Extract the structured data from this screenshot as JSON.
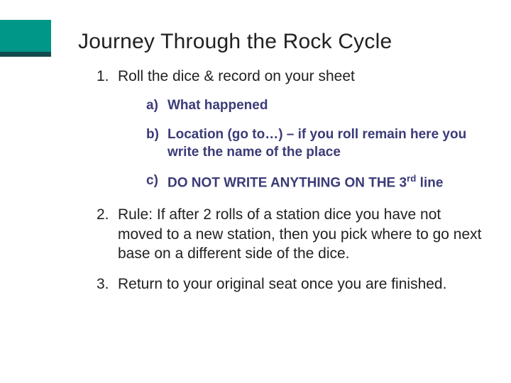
{
  "title": "Journey Through the Rock Cycle",
  "accent": {
    "primary": "#009688",
    "secondary": "#144b4e"
  },
  "colors": {
    "text": "#212121",
    "sub_text": "#3b3b78",
    "background": "#ffffff"
  },
  "typography": {
    "title_size": 30,
    "main_size": 21,
    "sub_size": 19
  },
  "items": [
    {
      "marker": "1.",
      "text": "Roll the dice & record on your sheet",
      "sub": [
        {
          "marker": "a)",
          "text": "What happened"
        },
        {
          "marker": "b)",
          "text": "Location (go to…) – if you roll remain here you write the name of the place"
        },
        {
          "marker": "c)",
          "prefix": "DO NOT WRITE ANYTHING ON THE 3",
          "sup": "rd",
          "suffix": " line"
        }
      ]
    },
    {
      "marker": "2.",
      "text": "Rule: If after 2 rolls of a station dice you have not moved to a new station, then you pick where to go next base on a different side of the dice."
    },
    {
      "marker": "3.",
      "text": "Return to your original seat once you are finished."
    }
  ]
}
